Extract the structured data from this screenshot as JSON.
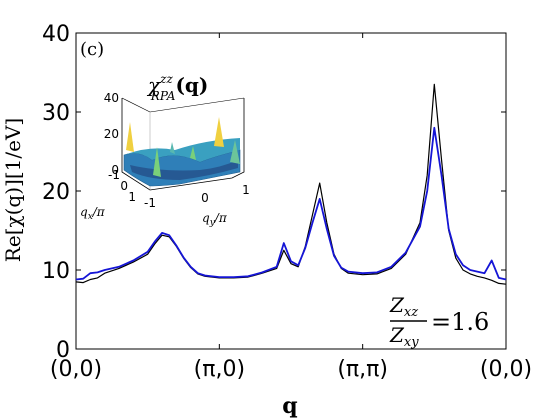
{
  "chart_data": {
    "type": "line",
    "panel_label": "(c)",
    "xlabel": "q",
    "ylabel": "Re[χ(q)][1/eV]",
    "ylim": [
      0,
      40
    ],
    "yticks": [
      0,
      10,
      20,
      30,
      40
    ],
    "xlim": [
      0,
      3
    ],
    "xticks": [
      {
        "pos": 0,
        "label": "(0,0)"
      },
      {
        "pos": 1,
        "label": "(π,0)"
      },
      {
        "pos": 2,
        "label": "(π,π)"
      },
      {
        "pos": 3,
        "label": "(0,0)"
      }
    ],
    "annotation": {
      "numerator": "Z",
      "numerator_sub": "xz",
      "denominator": "Z",
      "denominator_sub": "xy",
      "value": "=1.6"
    },
    "series": [
      {
        "color": "#000000",
        "x": [
          0,
          0.05,
          0.1,
          0.15,
          0.2,
          0.3,
          0.4,
          0.5,
          0.55,
          0.6,
          0.65,
          0.7,
          0.75,
          0.8,
          0.85,
          0.9,
          1.0,
          1.1,
          1.2,
          1.3,
          1.4,
          1.45,
          1.5,
          1.55,
          1.6,
          1.65,
          1.7,
          1.75,
          1.8,
          1.85,
          1.9,
          2.0,
          2.1,
          2.2,
          2.3,
          2.4,
          2.45,
          2.5,
          2.55,
          2.6,
          2.65,
          2.7,
          2.75,
          2.8,
          2.85,
          2.9,
          2.95,
          3.0
        ],
        "y": [
          8.5,
          8.4,
          8.8,
          9.0,
          9.6,
          10.2,
          11.0,
          12.0,
          13.3,
          14.4,
          14.2,
          13.0,
          11.5,
          10.3,
          9.5,
          9.2,
          9.0,
          9.0,
          9.1,
          9.6,
          10.2,
          12.5,
          10.8,
          10.4,
          13.0,
          17.0,
          21.0,
          16.0,
          12.0,
          10.2,
          9.6,
          9.4,
          9.5,
          10.2,
          12.0,
          16.0,
          22.0,
          33.5,
          24.0,
          15.0,
          11.5,
          10.0,
          9.5,
          9.2,
          9.0,
          8.7,
          8.3,
          8.2
        ]
      },
      {
        "color": "#1515d6",
        "x": [
          0,
          0.05,
          0.1,
          0.15,
          0.2,
          0.3,
          0.4,
          0.5,
          0.55,
          0.6,
          0.65,
          0.7,
          0.75,
          0.8,
          0.85,
          0.9,
          1.0,
          1.1,
          1.2,
          1.3,
          1.4,
          1.45,
          1.5,
          1.55,
          1.6,
          1.65,
          1.7,
          1.75,
          1.8,
          1.85,
          1.9,
          2.0,
          2.1,
          2.2,
          2.3,
          2.4,
          2.45,
          2.5,
          2.55,
          2.6,
          2.65,
          2.7,
          2.75,
          2.8,
          2.85,
          2.9,
          2.95,
          3.0
        ],
        "y": [
          8.8,
          8.9,
          9.6,
          9.7,
          10.0,
          10.4,
          11.2,
          12.3,
          13.6,
          14.7,
          14.4,
          13.1,
          11.6,
          10.4,
          9.6,
          9.3,
          9.1,
          9.1,
          9.2,
          9.7,
          10.4,
          13.4,
          11.1,
          10.6,
          12.8,
          16.0,
          19.0,
          15.2,
          11.8,
          10.3,
          9.8,
          9.6,
          9.7,
          10.4,
          12.2,
          15.5,
          20.0,
          28.0,
          22.0,
          15.2,
          12.0,
          10.6,
          10.0,
          9.8,
          9.6,
          11.2,
          9.0,
          8.8
        ]
      }
    ],
    "inset": {
      "title": "χ",
      "title_sup": "zz",
      "title_sub": "RPA",
      "title_arg": "(q)",
      "zticks": [
        "0",
        "20",
        "40"
      ],
      "yaxis_ticks": [
        "-1",
        "0",
        "1"
      ],
      "xaxis_ticks": [
        "-1",
        "0",
        "1"
      ],
      "label_qx": "q",
      "label_qx_sub": "x",
      "label_qx_den": "/π",
      "label_qy": "q",
      "label_qy_sub": "y",
      "label_qy_den": "/π"
    }
  }
}
